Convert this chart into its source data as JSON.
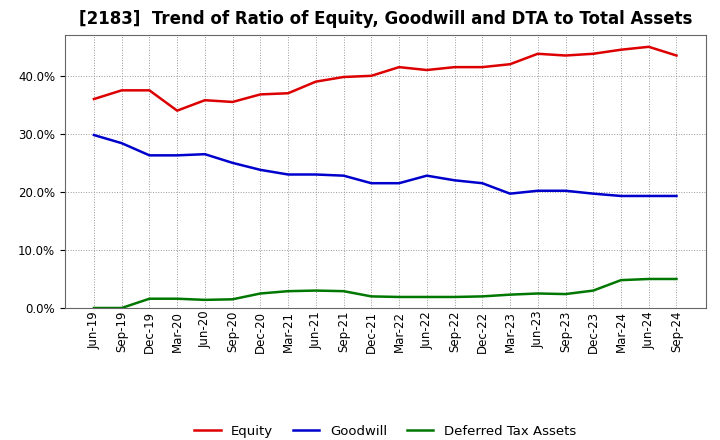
{
  "title": "[2183]  Trend of Ratio of Equity, Goodwill and DTA to Total Assets",
  "x_labels": [
    "Jun-19",
    "Sep-19",
    "Dec-19",
    "Mar-20",
    "Jun-20",
    "Sep-20",
    "Dec-20",
    "Mar-21",
    "Jun-21",
    "Sep-21",
    "Dec-21",
    "Mar-22",
    "Jun-22",
    "Sep-22",
    "Dec-22",
    "Mar-23",
    "Jun-23",
    "Sep-23",
    "Dec-23",
    "Mar-24",
    "Jun-24",
    "Sep-24"
  ],
  "equity": [
    0.36,
    0.375,
    0.375,
    0.34,
    0.358,
    0.355,
    0.368,
    0.37,
    0.39,
    0.398,
    0.4,
    0.415,
    0.41,
    0.415,
    0.415,
    0.42,
    0.438,
    0.435,
    0.438,
    0.445,
    0.45,
    0.435
  ],
  "goodwill": [
    0.298,
    0.284,
    0.263,
    0.263,
    0.265,
    0.25,
    0.238,
    0.23,
    0.23,
    0.228,
    0.215,
    0.215,
    0.228,
    0.22,
    0.215,
    0.197,
    0.202,
    0.202,
    0.197,
    0.193,
    0.193,
    0.193
  ],
  "dta": [
    0.0,
    0.0,
    0.016,
    0.016,
    0.014,
    0.015,
    0.025,
    0.029,
    0.03,
    0.029,
    0.02,
    0.019,
    0.019,
    0.019,
    0.02,
    0.023,
    0.025,
    0.024,
    0.03,
    0.048,
    0.05,
    0.05
  ],
  "equity_color": "#dd0000",
  "goodwill_color": "#0000cc",
  "dta_color": "#007700",
  "bg_color": "#ffffff",
  "plot_bg_color": "#ffffff",
  "grid_color": "#999999",
  "ylim": [
    0.0,
    0.47
  ],
  "yticks": [
    0.0,
    0.1,
    0.2,
    0.3,
    0.4
  ],
  "legend_labels": [
    "Equity",
    "Goodwill",
    "Deferred Tax Assets"
  ],
  "title_fontsize": 12,
  "axis_label_fontsize": 8.5,
  "legend_fontsize": 9.5
}
